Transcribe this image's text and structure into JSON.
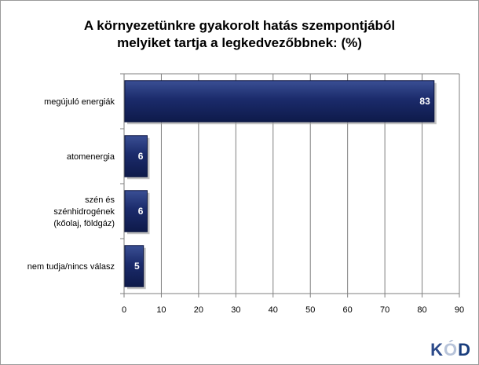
{
  "chart_data": {
    "type": "bar",
    "orientation": "horizontal",
    "title_lines": [
      "A környezetünkre gyakorolt hatás szempontjából",
      "melyiket tartja a legkedvezőbbnek: (%)"
    ],
    "categories": [
      [
        "megújuló energiák"
      ],
      [
        "atomenergia"
      ],
      [
        "szén és",
        "szénhidrogének",
        "(kőolaj, földgáz)"
      ],
      [
        "nem tudja/nincs válasz"
      ]
    ],
    "values": [
      83,
      6,
      6,
      5
    ],
    "data_labels": [
      "83",
      "6",
      "6",
      "5"
    ],
    "xlim": [
      0,
      90
    ],
    "xticks": [
      "0",
      "10",
      "20",
      "30",
      "40",
      "50",
      "60",
      "70",
      "80",
      "90"
    ],
    "grid": true,
    "bar_color": "#1b2b6b"
  },
  "logo": {
    "k": "K",
    "o": "Ó",
    "d": "D"
  }
}
